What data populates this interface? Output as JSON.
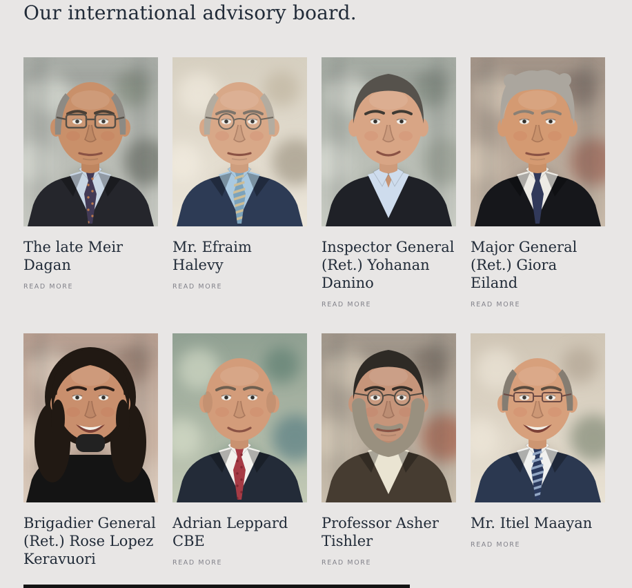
{
  "theme": {
    "page_bg": "#e8e6e5",
    "ink": "#212b38",
    "muted": "#82828a",
    "edge": "#131313"
  },
  "page": {
    "title": "Our international advisory board."
  },
  "members": [
    {
      "name": "The late Meir Dagan",
      "read_more": "READ MORE",
      "photo_desc": "Older man, balding with gray side hair, rectangular glasses, dark suit, light blue shirt, dark patterned tie, blurred office background",
      "portrait": {
        "bg": {
          "top": "#a8aca6",
          "bottom": "#c7c9c2",
          "bokeh": [
            "#e3e6de",
            "#75806f",
            "#565c52"
          ],
          "frames": true
        },
        "skin": "#c9906a",
        "brow": "#4a3f35",
        "hair": {
          "type": "sides",
          "color": "#8d8a84"
        },
        "glasses": {
          "type": "rect",
          "color": "#564f47"
        },
        "beard": null,
        "mouth": "neutral",
        "attire": {
          "type": "tie",
          "suit": "#25262c",
          "shirt": "#c9d6e4",
          "tie": "#423a56",
          "dots": "#bd7a4e"
        }
      }
    },
    {
      "name": "Mr. Efraim Halevy",
      "read_more": "READ MORE",
      "photo_desc": "Elderly man, balding with light gray hair, round wire glasses, navy suit, light blue shirt, striped tie, bright warm background",
      "portrait": {
        "bg": {
          "top": "#d6cfc0",
          "bottom": "#ece6da",
          "bokeh": [
            "#f7f1e5",
            "#b9ad96",
            "#8e8471"
          ],
          "frames": false
        },
        "skin": "#d8a888",
        "brow": "#7d746a",
        "hair": {
          "type": "sides",
          "color": "#b3aca0"
        },
        "glasses": {
          "type": "round",
          "color": "#6e675e"
        },
        "beard": null,
        "mouth": "neutral",
        "attire": {
          "type": "tie",
          "suit": "#2d3b55",
          "shirt": "#aac9e0",
          "tie": "#7ba3bd",
          "stripe": "#cdbd97"
        }
      }
    },
    {
      "name": "Inspector General (Ret.) Yohanan Danino",
      "read_more": "READ MORE",
      "photo_desc": "Middle-aged man with short graying dark hair, open-collar light blue shirt, dark blazer, blurred office background",
      "portrait": {
        "bg": {
          "top": "#a4aaa2",
          "bottom": "#c9ccc4",
          "bokeh": [
            "#e8eae2",
            "#6f7a70",
            "#8d9488"
          ],
          "frames": true
        },
        "skin": "#d8a585",
        "brow": "#3f3a33",
        "hair": {
          "type": "cap",
          "color": "#56524c"
        },
        "glasses": null,
        "beard": null,
        "mouth": "slight",
        "attire": {
          "type": "open",
          "suit": "#1f2127",
          "shirt": "#cedced"
        }
      }
    },
    {
      "name": "Major General (Ret.) Giora Eiland",
      "read_more": "READ MORE",
      "photo_desc": "Man with wavy light gray hair, white shirt, navy tie, dark suit, warm blurred background",
      "portrait": {
        "bg": {
          "top": "#a39488",
          "bottom": "#c8baaa",
          "bokeh": [
            "#e4d6c3",
            "#70615a",
            "#93503f"
          ],
          "frames": true
        },
        "skin": "#d49a72",
        "brow": "#8a8075",
        "hair": {
          "type": "wavy",
          "color": "#aba69e"
        },
        "glasses": null,
        "beard": null,
        "mouth": "neutral",
        "attire": {
          "type": "tie",
          "suit": "#16171b",
          "shirt": "#edebe5",
          "tie": "#31395a"
        }
      }
    },
    {
      "name": "Brigadier General (Ret.) Rose Lopez Keravuori",
      "photo_desc": "Smiling woman with dark shoulder-length wavy hair, black turtleneck, warm blurred background",
      "portrait": {
        "bg": {
          "top": "#b79e90",
          "bottom": "#dcccbd",
          "bokeh": [
            "#ecdecd",
            "#8a6e60",
            "#c7ad9c"
          ],
          "frames": true
        },
        "skin": "#c98f6d",
        "brow": "#2d1f18",
        "hair": {
          "type": "woman",
          "color": "#211913"
        },
        "glasses": null,
        "beard": null,
        "mouth": "smile",
        "attire": {
          "type": "turtleneck",
          "suit": "#141414"
        }
      }
    },
    {
      "name": "Adrian Leppard CBE",
      "read_more": "READ MORE",
      "photo_desc": "Bald man, white shirt, red tie, dark pinstripe suit, green-teal blurred background",
      "portrait": {
        "bg": {
          "top": "#90a092",
          "bottom": "#c3cab6",
          "bokeh": [
            "#e0e6d2",
            "#4f7468",
            "#3f6d78"
          ],
          "frames": false
        },
        "skin": "#d39c7a",
        "brow": "#6e5f50",
        "hair": {
          "type": "bald",
          "color": "#b99877"
        },
        "glasses": null,
        "beard": null,
        "mouth": "slight",
        "attire": {
          "type": "tie",
          "suit": "#232b38",
          "shirt": "#f3f2ee",
          "tie": "#a63b45",
          "dots": "#832731"
        }
      }
    },
    {
      "name": "Professor Asher Tishler",
      "read_more": "READ MORE",
      "photo_desc": "Man with short dark hair, oval glasses, gray beard, cream shirt, brown jacket, warm blurred background",
      "portrait": {
        "bg": {
          "top": "#a2978b",
          "bottom": "#cabfae",
          "bokeh": [
            "#e4d8c4",
            "#6d6156",
            "#a04a33"
          ],
          "frames": true
        },
        "skin": "#c6957a",
        "brow": "#332c26",
        "hair": {
          "type": "cap",
          "color": "#2e2a25"
        },
        "glasses": {
          "type": "round",
          "color": "#4f4840"
        },
        "beard": "#99907f",
        "mouth": "neutral",
        "attire": {
          "type": "crew",
          "suit": "#463c31",
          "shirt": "#eae4d2"
        }
      }
    },
    {
      "name": "Mr. Itiel Maayan",
      "read_more": "READ MORE",
      "photo_desc": "Smiling bald man with thin glasses, white shirt, navy striped tie, navy suit, bright warm blurred background",
      "portrait": {
        "bg": {
          "top": "#cfc5b5",
          "bottom": "#e9e2d4",
          "bokeh": [
            "#f3ecdf",
            "#a89a88",
            "#687460"
          ],
          "frames": false
        },
        "skin": "#d7a07c",
        "brow": "#5a4c3f",
        "hair": {
          "type": "sides",
          "color": "#857d72"
        },
        "glasses": {
          "type": "thin",
          "color": "#6b4a44"
        },
        "beard": null,
        "mouth": "smile",
        "attire": {
          "type": "tie",
          "suit": "#2b3850",
          "shirt": "#f0f1ef",
          "tie": "#2b3a5e",
          "stripe": "#93a7c4"
        }
      }
    }
  ]
}
